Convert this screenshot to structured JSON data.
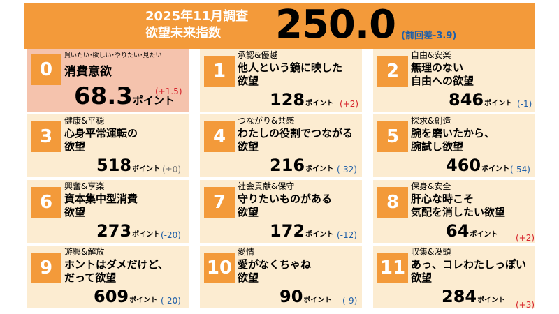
{
  "header": {
    "title_line1": "2025年11月調査",
    "title_line2": "欲望未来指数",
    "index_value": "250.0",
    "diff_text": "(前回差-3.9)"
  },
  "cards": [
    {
      "num": "0",
      "category": "買いたい･欲しい･やりたい･見たい",
      "name_line1": "消費意欲",
      "name_line2": "",
      "value": "68.3",
      "unit": "ポイント",
      "change": "(+1.5)",
      "change_dir": "up"
    },
    {
      "num": "1",
      "category": "承認&優越",
      "name_line1": "他人という鏡に映した",
      "name_line2": "欲望",
      "value": "128",
      "unit": "ポイント",
      "change": "(+2)",
      "change_dir": "up"
    },
    {
      "num": "2",
      "category": "自由&安楽",
      "name_line1": "無理のない",
      "name_line2": "自由への欲望",
      "value": "846",
      "unit": "ポイント",
      "change": "(-1)",
      "change_dir": "down"
    },
    {
      "num": "3",
      "category": "健康&平穏",
      "name_line1": "心身平常運転の",
      "name_line2": "欲望",
      "value": "518",
      "unit": "ポイント",
      "change": "(±0)",
      "change_dir": "flat"
    },
    {
      "num": "4",
      "category": "つながり&共感",
      "name_line1": "わたしの役割でつながる",
      "name_line2": "欲望",
      "value": "216",
      "unit": "ポイント",
      "change": "(-32)",
      "change_dir": "down"
    },
    {
      "num": "5",
      "category": "探求&創造",
      "name_line1": "腕を磨いたから、",
      "name_line2": "腕試し欲望",
      "value": "460",
      "unit": "ポイント",
      "change": "(-54)",
      "change_dir": "down"
    },
    {
      "num": "6",
      "category": "興奮&享楽",
      "name_line1": "資本集中型消費",
      "name_line2": "欲望",
      "value": "273",
      "unit": "ポイント",
      "change": "(-20)",
      "change_dir": "down"
    },
    {
      "num": "7",
      "category": "社会貢献&保守",
      "name_line1": "守りたいものがある",
      "name_line2": "欲望",
      "value": "172",
      "unit": "ポイント",
      "change": "(-12)",
      "change_dir": "down"
    },
    {
      "num": "8",
      "category": "保身&安全",
      "name_line1": "肝心な時こそ",
      "name_line2": "気配を消したい欲望",
      "value": "64",
      "unit": "ポイント",
      "change": "(+2)",
      "change_dir": "up"
    },
    {
      "num": "9",
      "category": "遊興&解放",
      "name_line1": "ホントはダメだけど、",
      "name_line2": "だって欲望",
      "value": "609",
      "unit": "ポイント",
      "change": "(-20)",
      "change_dir": "down"
    },
    {
      "num": "10",
      "category": "愛情",
      "name_line1": "愛がなくちゃね",
      "name_line2": "欲望",
      "value": "90",
      "unit": "ポイント",
      "change": "(-9)",
      "change_dir": "down"
    },
    {
      "num": "11",
      "category": "収集&没頭",
      "name_line1": "あっ、コレわたしっぽい",
      "name_line2": "欲望",
      "value": "284",
      "unit": "ポイント",
      "change": "(+3)",
      "change_dir": "up"
    }
  ]
}
